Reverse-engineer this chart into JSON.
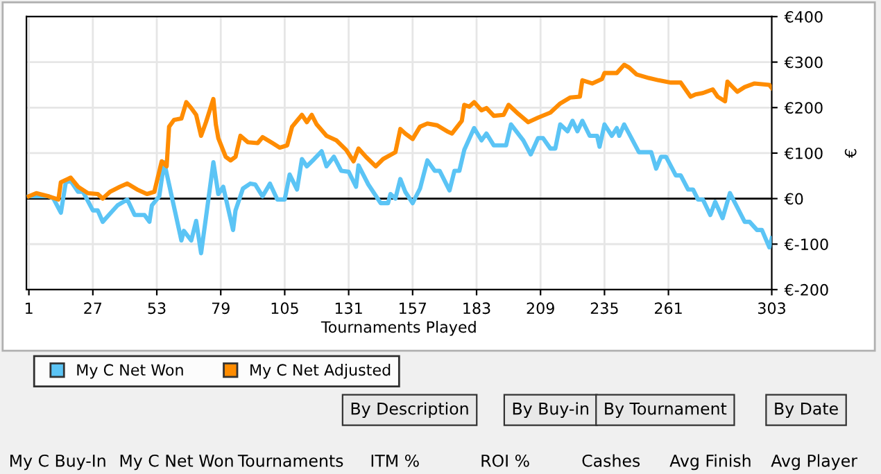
{
  "chart_data": {
    "type": "line",
    "xlabel": "Tournaments Played",
    "ylabel": "€",
    "xlim": [
      0,
      303
    ],
    "xticks": [
      1,
      27,
      53,
      79,
      105,
      131,
      157,
      183,
      209,
      235,
      261,
      303
    ],
    "ylim": [
      -200,
      400
    ],
    "yticks": [
      {
        "value": -200,
        "label": "€-200"
      },
      {
        "value": -100,
        "label": "€-100"
      },
      {
        "value": 0,
        "label": "€0"
      },
      {
        "value": 100,
        "label": "€100"
      },
      {
        "value": 200,
        "label": "€200"
      },
      {
        "value": 300,
        "label": "€300"
      },
      {
        "value": 400,
        "label": "€400"
      }
    ],
    "grid": true,
    "legend": "bottom left",
    "marker": "none",
    "line_style": "solid",
    "ref_lines": [
      {
        "axis": "y",
        "value": 0,
        "color": "#000000"
      }
    ],
    "series": [
      {
        "name": "My C Net Won",
        "color": "#5bc4f5",
        "x": [
          1,
          9,
          11,
          14,
          16,
          18,
          21,
          23,
          27,
          29,
          31,
          34,
          37,
          41,
          44,
          48,
          50,
          51,
          54,
          56,
          58,
          63,
          64,
          67,
          69,
          71,
          73,
          76,
          78,
          80,
          84,
          85,
          88,
          91,
          93,
          96,
          99,
          102,
          105,
          107,
          110,
          112,
          114,
          117,
          120,
          122,
          125,
          128,
          131,
          134,
          135,
          139,
          144,
          147,
          148,
          150,
          152,
          154,
          157,
          160,
          163,
          166,
          168,
          172,
          174,
          176,
          178,
          182,
          185,
          187,
          190,
          195,
          197,
          202,
          205,
          208,
          210,
          213,
          215,
          217,
          220,
          222,
          224,
          226,
          229,
          232,
          233,
          235,
          238,
          240,
          241,
          243,
          249,
          254,
          256,
          258,
          260,
          264,
          266,
          269,
          271,
          273,
          275,
          278,
          280,
          283,
          286,
          292,
          294,
          297,
          299,
          302,
          303
        ],
        "values": [
          5,
          5,
          0,
          -31,
          36,
          39,
          15,
          15,
          -26,
          -26,
          -51,
          -33,
          -15,
          -2,
          -36,
          -36,
          -51,
          -15,
          5,
          80,
          31,
          -92,
          -71,
          -92,
          -49,
          -120,
          -41,
          80,
          10,
          26,
          -69,
          -26,
          22,
          33,
          31,
          5,
          33,
          -2,
          -2,
          53,
          20,
          87,
          71,
          87,
          104,
          71,
          92,
          61,
          59,
          26,
          73,
          31,
          -10,
          -10,
          10,
          0,
          43,
          15,
          -10,
          22,
          84,
          61,
          61,
          18,
          61,
          61,
          107,
          155,
          128,
          143,
          117,
          117,
          163,
          128,
          97,
          133,
          133,
          110,
          110,
          163,
          148,
          171,
          148,
          171,
          138,
          138,
          114,
          163,
          138,
          155,
          138,
          163,
          102,
          102,
          66,
          92,
          92,
          51,
          51,
          20,
          20,
          -2,
          -2,
          -36,
          -7,
          -43,
          12,
          -51,
          -51,
          -69,
          -69,
          -107,
          -87
        ]
      },
      {
        "name": "My C Net Adjusted",
        "color": "#ff8c00",
        "x": [
          1,
          4,
          9,
          13,
          14,
          18,
          21,
          25,
          29,
          31,
          34,
          38,
          41,
          45,
          49,
          52,
          55,
          57,
          58,
          60,
          63,
          65,
          67,
          69,
          71,
          73,
          76,
          77,
          78,
          81,
          83,
          85,
          87,
          90,
          94,
          96,
          100,
          103,
          106,
          108,
          110,
          112,
          114,
          116,
          118,
          122,
          126,
          130,
          133,
          135,
          138,
          142,
          145,
          150,
          152,
          154,
          157,
          160,
          163,
          167,
          171,
          173,
          177,
          178,
          180,
          182,
          185,
          187,
          190,
          194,
          196,
          200,
          204,
          208,
          213,
          217,
          221,
          225,
          226,
          230,
          234,
          235,
          240,
          243,
          245,
          248,
          253,
          257,
          262,
          266,
          270,
          272,
          275,
          279,
          281,
          284,
          285,
          289,
          292,
          296,
          302,
          303
        ],
        "values": [
          5,
          12,
          5,
          -2,
          36,
          46,
          26,
          12,
          10,
          0,
          15,
          26,
          33,
          20,
          10,
          15,
          82,
          71,
          158,
          173,
          176,
          212,
          199,
          184,
          138,
          168,
          219,
          163,
          133,
          92,
          84,
          92,
          138,
          124,
          122,
          135,
          122,
          112,
          117,
          158,
          171,
          184,
          168,
          184,
          163,
          138,
          128,
          107,
          82,
          110,
          92,
          71,
          87,
          102,
          153,
          143,
          131,
          158,
          165,
          161,
          148,
          143,
          171,
          206,
          202,
          212,
          194,
          199,
          182,
          184,
          206,
          186,
          168,
          178,
          189,
          209,
          222,
          224,
          260,
          253,
          263,
          276,
          276,
          294,
          288,
          273,
          265,
          260,
          255,
          255,
          224,
          229,
          232,
          240,
          224,
          214,
          257,
          235,
          245,
          253,
          250,
          243
        ]
      }
    ],
    "annotations": [
      "By Description",
      "By Buy-in",
      "By Tournament",
      "By Date",
      "My C Buy-In",
      "My C Net Won",
      "Tournaments",
      "ITM %",
      "ROI %",
      "Cashes",
      "Avg Finish",
      "Avg Player"
    ]
  }
}
